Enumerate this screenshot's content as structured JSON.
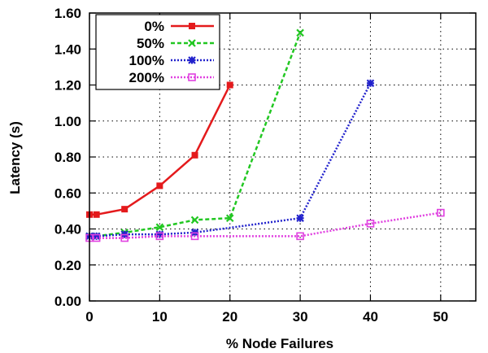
{
  "chart_data": {
    "type": "line",
    "xlabel": "% Node Failures",
    "ylabel": "Latency (s)",
    "xlim": [
      0,
      55
    ],
    "ylim": [
      0,
      1.6
    ],
    "xticks": [
      0,
      10,
      20,
      30,
      40,
      50
    ],
    "xtick_labels": [
      "0",
      "10",
      "20",
      "30",
      "40",
      "50"
    ],
    "yticks": [
      0,
      0.2,
      0.4,
      0.6,
      0.8,
      1.0,
      1.2,
      1.4,
      1.6
    ],
    "ytick_labels": [
      "0.00",
      "0.20",
      "0.40",
      "0.60",
      "0.80",
      "1.00",
      "1.20",
      "1.40",
      "1.60"
    ],
    "grid": true,
    "legend_position": "top-left",
    "series": [
      {
        "name": "0%",
        "color": "#e41a1c",
        "dash": "solid",
        "marker": "filled-square",
        "x": [
          0,
          1,
          5,
          10,
          15,
          20
        ],
        "y": [
          0.48,
          0.48,
          0.51,
          0.64,
          0.81,
          1.2
        ]
      },
      {
        "name": "50%",
        "color": "#22c722",
        "dash": "dashed",
        "marker": "x",
        "x": [
          0,
          1,
          5,
          10,
          15,
          20,
          30
        ],
        "y": [
          0.36,
          0.36,
          0.38,
          0.41,
          0.45,
          0.46,
          1.49
        ]
      },
      {
        "name": "100%",
        "color": "#2222cc",
        "dash": "dotted",
        "marker": "star",
        "x": [
          0,
          1,
          5,
          10,
          15,
          30,
          40
        ],
        "y": [
          0.36,
          0.36,
          0.37,
          0.37,
          0.38,
          0.46,
          1.21
        ]
      },
      {
        "name": "200%",
        "color": "#e040e0",
        "dash": "dotted",
        "marker": "open-square",
        "x": [
          0,
          1,
          5,
          10,
          15,
          30,
          40,
          50
        ],
        "y": [
          0.35,
          0.35,
          0.35,
          0.36,
          0.36,
          0.36,
          0.43,
          0.49
        ]
      }
    ]
  }
}
